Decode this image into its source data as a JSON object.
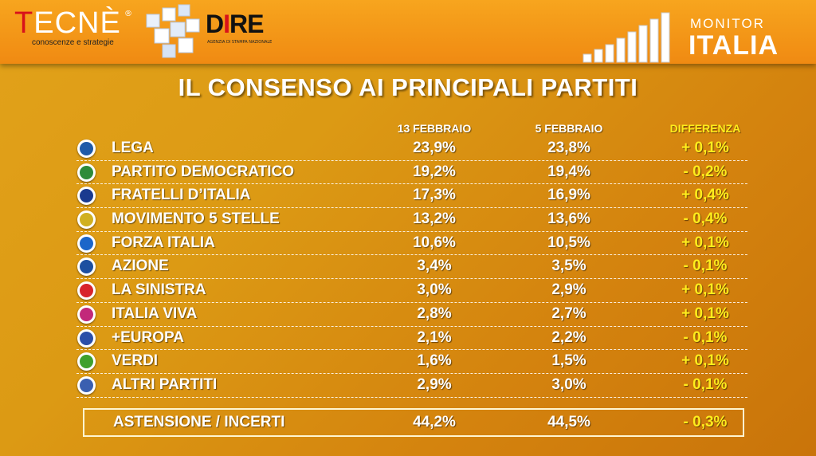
{
  "header": {
    "tecne_logo": "TECNÈ",
    "tecne_reg": "®",
    "tecne_tagline": "conoscenze e strategie",
    "dire_logo": "DIRE",
    "dire_tagline": "AGENZIA DI STAMPA NAZIONALE",
    "monitor_small": "MONITOR",
    "monitor_big": "ITALIA"
  },
  "chart_data": {
    "type": "table",
    "title": "IL CONSENSO AI PRINCIPALI PARTITI",
    "columns": [
      "13 FEBBRAIO",
      "5 FEBBRAIO",
      "DIFFERENZA"
    ],
    "rows": [
      {
        "party": "LEGA",
        "feb13": "23,9%",
        "feb5": "23,8%",
        "diff": "+ 0,1%",
        "icon": "lega-logo-icon",
        "color": "#1f5aa8"
      },
      {
        "party": "PARTITO DEMOCRATICO",
        "feb13": "19,2%",
        "feb5": "19,4%",
        "diff": "- 0,2%",
        "icon": "pd-logo-icon",
        "color": "#2e8b3a"
      },
      {
        "party": "FRATELLI D’ITALIA",
        "feb13": "17,3%",
        "feb5": "16,9%",
        "diff": "+ 0,4%",
        "icon": "fdi-logo-icon",
        "color": "#1a3a8f"
      },
      {
        "party": "MOVIMENTO 5 STELLE",
        "feb13": "13,2%",
        "feb5": "13,6%",
        "diff": "- 0,4%",
        "icon": "m5s-logo-icon",
        "color": "#d0b020"
      },
      {
        "party": "FORZA ITALIA",
        "feb13": "10,6%",
        "feb5": "10,5%",
        "diff": "+ 0,1%",
        "icon": "forza-italia-logo-icon",
        "color": "#1b66c9"
      },
      {
        "party": "AZIONE",
        "feb13": "3,4%",
        "feb5": "3,5%",
        "diff": "- 0,1%",
        "icon": "azione-logo-icon",
        "color": "#1d4fa0"
      },
      {
        "party": "LA SINISTRA",
        "feb13": "3,0%",
        "feb5": "2,9%",
        "diff": "+ 0,1%",
        "icon": "la-sinistra-logo-icon",
        "color": "#d8242c"
      },
      {
        "party": "ITALIA VIVA",
        "feb13": "2,8%",
        "feb5": "2,7%",
        "diff": "+ 0,1%",
        "icon": "italia-viva-logo-icon",
        "color": "#c2287a"
      },
      {
        "party": "+EUROPA",
        "feb13": "2,1%",
        "feb5": "2,2%",
        "diff": "- 0,1%",
        "icon": "piu-europa-logo-icon",
        "color": "#2b4fa8"
      },
      {
        "party": "VERDI",
        "feb13": "1,6%",
        "feb5": "1,5%",
        "diff": "+ 0,1%",
        "icon": "verdi-logo-icon",
        "color": "#3fa02c"
      },
      {
        "party": "ALTRI PARTITI",
        "feb13": "2,9%",
        "feb5": "3,0%",
        "diff": "- 0,1%",
        "icon": "altri-partiti-logo-icon",
        "color": "#3a5fb0"
      }
    ],
    "summary": {
      "label": "ASTENSIONE / INCERTI",
      "feb13": "44,2%",
      "feb5": "44,5%",
      "diff": "- 0,3%"
    }
  }
}
